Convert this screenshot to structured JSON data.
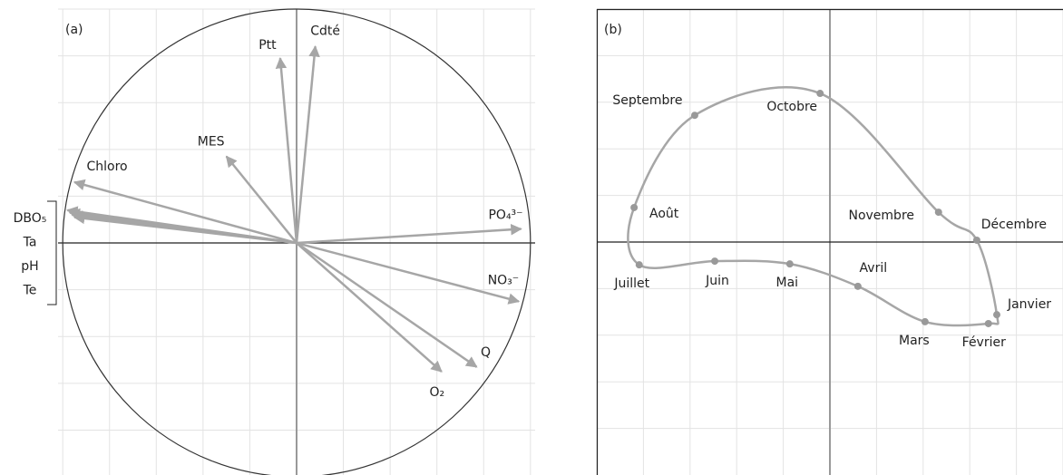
{
  "chart_data": [
    {
      "type": "vector",
      "title": "(a)",
      "circle": true,
      "grid": true,
      "xlim": [
        -1.02,
        1.02
      ],
      "ylim": [
        -0.992,
        1
      ],
      "xticks": [
        -1,
        -0.8,
        -0.6,
        -0.4,
        -0.2,
        0,
        0.2,
        0.4,
        0.6,
        0.8,
        1
      ],
      "yticks": [
        -0.8,
        -0.6,
        -0.4,
        -0.2,
        0,
        0.2,
        0.4,
        0.6,
        0.8,
        1
      ],
      "color": "#a6a6a6",
      "vectors": [
        {
          "name": "Ptt",
          "x": -0.07,
          "y": 0.79
        },
        {
          "name": "Cdté",
          "x": 0.08,
          "y": 0.84
        },
        {
          "name": "MES",
          "x": -0.3,
          "y": 0.37
        },
        {
          "name": "Chloro",
          "x": -0.95,
          "y": 0.26
        },
        {
          "name": "DBO₅",
          "x": -0.98,
          "y": 0.14,
          "bracket": true
        },
        {
          "name": "Ta",
          "x": -0.97,
          "y": 0.13,
          "bracket": true
        },
        {
          "name": "pH",
          "x": -0.96,
          "y": 0.12,
          "bracket": true
        },
        {
          "name": "Te",
          "x": -0.95,
          "y": 0.11,
          "bracket": true
        },
        {
          "name": "PO₄³⁻",
          "x": 0.96,
          "y": 0.06
        },
        {
          "name": "NO₃⁻",
          "x": 0.95,
          "y": -0.25
        },
        {
          "name": "Q",
          "x": 0.77,
          "y": -0.53
        },
        {
          "name": "O₂",
          "x": 0.62,
          "y": -0.55
        }
      ]
    },
    {
      "type": "line",
      "title": "(b)",
      "closed": true,
      "grid": true,
      "xlim": [
        -5,
        5
      ],
      "ylim": [
        -5,
        5
      ],
      "xticks": [
        -5,
        -4,
        -3,
        -2,
        -1,
        0,
        1,
        2,
        3,
        4,
        5
      ],
      "yticks": [
        -4,
        -3,
        -2,
        -1,
        0,
        1,
        2,
        3,
        4,
        5
      ],
      "color": "#a6a6a6",
      "categories": [
        "Janvier",
        "Février",
        "Mars",
        "Avril",
        "Mai",
        "Juin",
        "Juillet",
        "Août",
        "Septembre",
        "Octobre",
        "Novembre",
        "Décembre"
      ],
      "x": [
        3.58,
        3.4,
        2.04,
        0.6,
        -0.86,
        -2.47,
        -4.09,
        -4.2,
        -2.9,
        -0.21,
        2.33,
        3.15
      ],
      "values": [
        -1.56,
        -1.75,
        -1.71,
        -0.95,
        -0.47,
        -0.41,
        -0.49,
        0.74,
        2.72,
        3.19,
        0.64,
        0.04
      ]
    }
  ]
}
